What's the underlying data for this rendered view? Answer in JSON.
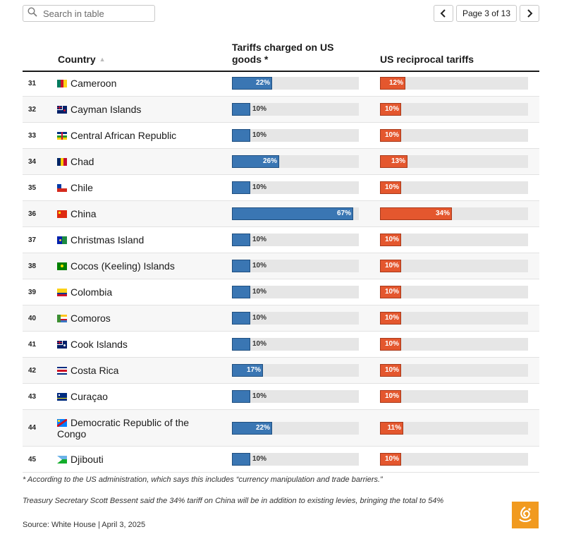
{
  "search": {
    "placeholder": "Search in table"
  },
  "pager": {
    "label": "Page 3 of 13",
    "prev_icon": "chevron-left-icon",
    "next_icon": "chevron-right-icon"
  },
  "table": {
    "headers": {
      "country": "Country",
      "tariffs_charged": "Tariffs charged on US goods *",
      "us_reciprocal": "US reciprocal tariffs"
    },
    "sort_indicator": "▲",
    "rows": [
      {
        "rank": "31",
        "country": "Cameroon",
        "flag": "cameroon",
        "charged": 22,
        "charged_label": "22%",
        "reciprocal": 12,
        "reciprocal_label": "12%"
      },
      {
        "rank": "32",
        "country": "Cayman Islands",
        "flag": "cayman-islands",
        "charged": 10,
        "charged_label": "10%",
        "reciprocal": 10,
        "reciprocal_label": "10%"
      },
      {
        "rank": "33",
        "country": "Central African Republic",
        "flag": "central-african-republic",
        "charged": 10,
        "charged_label": "10%",
        "reciprocal": 10,
        "reciprocal_label": "10%"
      },
      {
        "rank": "34",
        "country": "Chad",
        "flag": "chad",
        "charged": 26,
        "charged_label": "26%",
        "reciprocal": 13,
        "reciprocal_label": "13%"
      },
      {
        "rank": "35",
        "country": "Chile",
        "flag": "chile",
        "charged": 10,
        "charged_label": "10%",
        "reciprocal": 10,
        "reciprocal_label": "10%"
      },
      {
        "rank": "36",
        "country": "China",
        "flag": "china",
        "charged": 67,
        "charged_label": "67%",
        "reciprocal": 34,
        "reciprocal_label": "34%"
      },
      {
        "rank": "37",
        "country": "Christmas Island",
        "flag": "christmas-island",
        "charged": 10,
        "charged_label": "10%",
        "reciprocal": 10,
        "reciprocal_label": "10%"
      },
      {
        "rank": "38",
        "country": "Cocos (Keeling) Islands",
        "flag": "cocos-islands",
        "charged": 10,
        "charged_label": "10%",
        "reciprocal": 10,
        "reciprocal_label": "10%"
      },
      {
        "rank": "39",
        "country": "Colombia",
        "flag": "colombia",
        "charged": 10,
        "charged_label": "10%",
        "reciprocal": 10,
        "reciprocal_label": "10%"
      },
      {
        "rank": "40",
        "country": "Comoros",
        "flag": "comoros",
        "charged": 10,
        "charged_label": "10%",
        "reciprocal": 10,
        "reciprocal_label": "10%"
      },
      {
        "rank": "41",
        "country": "Cook Islands",
        "flag": "cook-islands",
        "charged": 10,
        "charged_label": "10%",
        "reciprocal": 10,
        "reciprocal_label": "10%"
      },
      {
        "rank": "42",
        "country": "Costa Rica",
        "flag": "costa-rica",
        "charged": 17,
        "charged_label": "17%",
        "reciprocal": 10,
        "reciprocal_label": "10%"
      },
      {
        "rank": "43",
        "country": "Curaçao",
        "flag": "curacao",
        "charged": 10,
        "charged_label": "10%",
        "reciprocal": 10,
        "reciprocal_label": "10%"
      },
      {
        "rank": "44",
        "country": "Democratic Republic of the Congo",
        "flag": "dr-congo",
        "charged": 22,
        "charged_label": "22%",
        "reciprocal": 11,
        "reciprocal_label": "11%"
      },
      {
        "rank": "45",
        "country": "Djibouti",
        "flag": "djibouti",
        "charged": 10,
        "charged_label": "10%",
        "reciprocal": 10,
        "reciprocal_label": "10%"
      }
    ]
  },
  "colors": {
    "charged_bar": "#3a76b3",
    "reciprocal_bar": "#e4572e",
    "track": "#e6e6e6",
    "logo": "#f19a1f"
  },
  "footnotes": {
    "asterisk": "* According to the US administration, which says this includes “currency manipulation and trade barriers.”",
    "china_note": "Treasury Secretary Scott Bessent said the 34% tariff on China will be in addition to existing levies, bringing the total to 54%",
    "source": "Source: White House | April 3, 2025"
  },
  "logo": {
    "icon": "al-jazeera-logo-icon"
  }
}
